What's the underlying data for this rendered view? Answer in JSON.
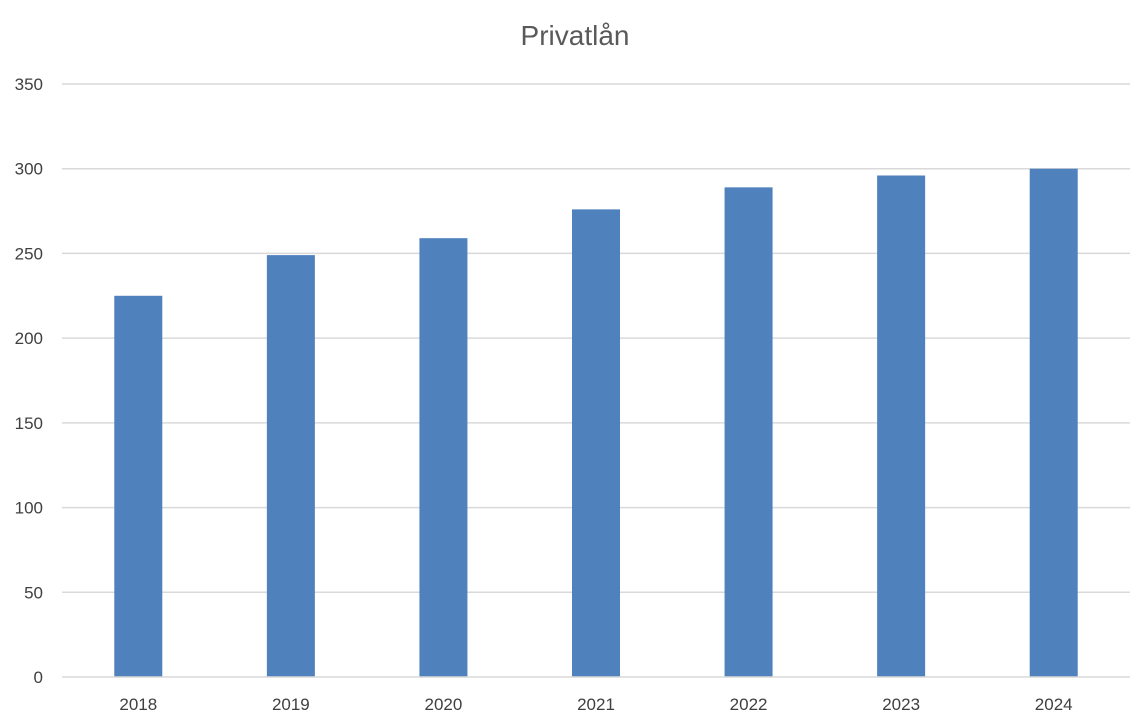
{
  "chart_data": {
    "type": "bar",
    "title": "Privatlån",
    "xlabel": "",
    "ylabel": "",
    "categories": [
      "2018",
      "2019",
      "2020",
      "2021",
      "2022",
      "2023",
      "2024"
    ],
    "values": [
      225,
      249,
      259,
      276,
      289,
      296,
      300
    ],
    "ylim": [
      0,
      350
    ],
    "yticks": [
      0,
      50,
      100,
      150,
      200,
      250,
      300,
      350
    ],
    "grid": true,
    "legend": "none",
    "bar_color": "#4f81bd",
    "grid_color": "#d9d9d9"
  }
}
